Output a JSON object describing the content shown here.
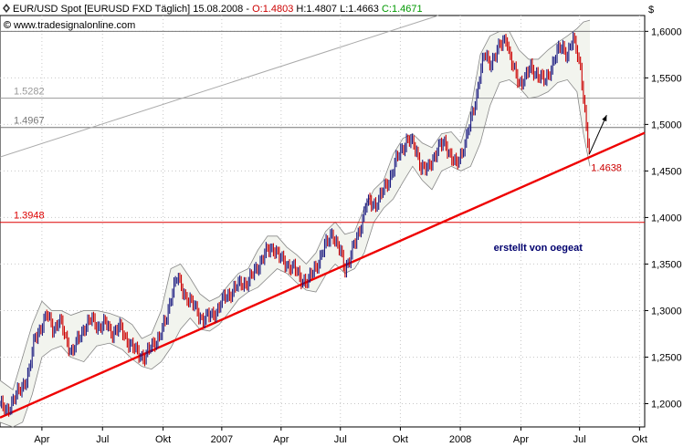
{
  "header": {
    "icon": "diamond-marker-icon",
    "title": "EUR/USD Spot [EURUSD FXD  Täglich] 15.08.2008 - ",
    "open": "O:1.4803",
    "high": " H:1.4807",
    "low": " L:1.4663",
    "close": " C:1.4671",
    "watermark": "www.tradesignalonline.com",
    "watermark_icon": "copyright-icon",
    "currency": "$"
  },
  "colors": {
    "candle": "#1a1a80",
    "candle_down": "#cc0000",
    "trend": "#ee0000",
    "level_gray": "#999999",
    "level_red": "#dd0000",
    "band": "#f2f4ee",
    "band_line": "#888888",
    "grid": "#c8c8c8"
  },
  "chart_data": {
    "type": "line",
    "ylim": [
      1.175,
      1.617
    ],
    "xlim": [
      0,
      100
    ],
    "y_ticks": [
      "1,6000",
      "1,5500",
      "1,5000",
      "1,4500",
      "1,4000",
      "1,3500",
      "1,3000",
      "1,2500",
      "1,2000"
    ],
    "y_tick_values": [
      1.6,
      1.55,
      1.5,
      1.45,
      1.4,
      1.35,
      1.3,
      1.25,
      1.2
    ],
    "x_ticks": [
      "Apr",
      "Jul",
      "Okt",
      "2007",
      "Apr",
      "Jul",
      "Okt",
      "2008",
      "Apr",
      "Jul",
      "Okt"
    ],
    "x_tick_values": [
      6.5,
      15.9,
      25.3,
      34.4,
      43.6,
      52.8,
      62.1,
      71.4,
      80.8,
      89.9,
      99.2
    ],
    "price": [
      [
        0.0,
        1.2
      ],
      [
        1.0,
        1.19
      ],
      [
        2.0,
        1.205
      ],
      [
        3.3,
        1.215
      ],
      [
        4.5,
        1.235
      ],
      [
        5.4,
        1.27
      ],
      [
        6.5,
        1.285
      ],
      [
        7.3,
        1.295
      ],
      [
        8.3,
        1.28
      ],
      [
        9.2,
        1.29
      ],
      [
        10.2,
        1.27
      ],
      [
        11.2,
        1.255
      ],
      [
        12.1,
        1.268
      ],
      [
        13.1,
        1.283
      ],
      [
        14.2,
        1.29
      ],
      [
        15.2,
        1.283
      ],
      [
        16.4,
        1.286
      ],
      [
        17.3,
        1.276
      ],
      [
        18.5,
        1.282
      ],
      [
        19.4,
        1.272
      ],
      [
        20.1,
        1.265
      ],
      [
        21.2,
        1.255
      ],
      [
        22.4,
        1.25
      ],
      [
        23.6,
        1.262
      ],
      [
        24.9,
        1.275
      ],
      [
        25.8,
        1.29
      ],
      [
        26.8,
        1.325
      ],
      [
        27.5,
        1.335
      ],
      [
        28.4,
        1.32
      ],
      [
        29.5,
        1.31
      ],
      [
        30.5,
        1.3
      ],
      [
        31.5,
        1.29
      ],
      [
        32.7,
        1.295
      ],
      [
        33.7,
        1.3
      ],
      [
        34.9,
        1.315
      ],
      [
        36.0,
        1.32
      ],
      [
        37.4,
        1.33
      ],
      [
        38.5,
        1.33
      ],
      [
        39.7,
        1.345
      ],
      [
        40.6,
        1.355
      ],
      [
        41.6,
        1.365
      ],
      [
        42.5,
        1.368
      ],
      [
        43.5,
        1.355
      ],
      [
        44.5,
        1.35
      ],
      [
        45.6,
        1.345
      ],
      [
        46.6,
        1.335
      ],
      [
        47.8,
        1.33
      ],
      [
        48.7,
        1.345
      ],
      [
        49.6,
        1.355
      ],
      [
        50.5,
        1.37
      ],
      [
        51.5,
        1.385
      ],
      [
        52.2,
        1.37
      ],
      [
        53.0,
        1.36
      ],
      [
        53.4,
        1.345
      ],
      [
        54.2,
        1.355
      ],
      [
        55.2,
        1.375
      ],
      [
        56.1,
        1.395
      ],
      [
        56.8,
        1.415
      ],
      [
        58.3,
        1.415
      ],
      [
        59.2,
        1.425
      ],
      [
        60.3,
        1.44
      ],
      [
        61.4,
        1.46
      ],
      [
        62.1,
        1.47
      ],
      [
        63.2,
        1.485
      ],
      [
        63.8,
        1.48
      ],
      [
        64.7,
        1.47
      ],
      [
        65.3,
        1.455
      ],
      [
        66.3,
        1.45
      ],
      [
        67.0,
        1.462
      ],
      [
        68.0,
        1.475
      ],
      [
        69.1,
        1.48
      ],
      [
        70.0,
        1.465
      ],
      [
        70.8,
        1.455
      ],
      [
        71.6,
        1.47
      ],
      [
        72.3,
        1.485
      ],
      [
        73.1,
        1.505
      ],
      [
        73.9,
        1.53
      ],
      [
        74.4,
        1.555
      ],
      [
        75.2,
        1.575
      ],
      [
        75.9,
        1.565
      ],
      [
        76.8,
        1.575
      ],
      [
        77.7,
        1.585
      ],
      [
        78.6,
        1.595
      ],
      [
        79.0,
        1.575
      ],
      [
        79.6,
        1.56
      ],
      [
        80.5,
        1.545
      ],
      [
        81.4,
        1.55
      ],
      [
        82.3,
        1.56
      ],
      [
        83.3,
        1.555
      ],
      [
        84.5,
        1.545
      ],
      [
        85.4,
        1.56
      ],
      [
        86.3,
        1.575
      ],
      [
        87.2,
        1.585
      ],
      [
        88.0,
        1.575
      ],
      [
        88.9,
        1.59
      ],
      [
        89.5,
        1.58
      ],
      [
        90.1,
        1.56
      ],
      [
        90.6,
        1.52
      ],
      [
        91.0,
        1.49
      ],
      [
        91.4,
        1.47
      ]
    ],
    "band_upper": [
      [
        0.0,
        1.225
      ],
      [
        2.0,
        1.215
      ],
      [
        3.5,
        1.25
      ],
      [
        5.0,
        1.285
      ],
      [
        6.5,
        1.31
      ],
      [
        8.0,
        1.3
      ],
      [
        9.5,
        1.3
      ],
      [
        11.0,
        1.295
      ],
      [
        13.0,
        1.3
      ],
      [
        15.0,
        1.3
      ],
      [
        17.0,
        1.297
      ],
      [
        19.0,
        1.292
      ],
      [
        20.5,
        1.285
      ],
      [
        22.0,
        1.27
      ],
      [
        23.5,
        1.275
      ],
      [
        25.0,
        1.3
      ],
      [
        26.5,
        1.345
      ],
      [
        28.0,
        1.35
      ],
      [
        29.5,
        1.335
      ],
      [
        31.0,
        1.318
      ],
      [
        32.5,
        1.31
      ],
      [
        34.0,
        1.315
      ],
      [
        35.5,
        1.328
      ],
      [
        37.0,
        1.34
      ],
      [
        38.5,
        1.345
      ],
      [
        40.0,
        1.365
      ],
      [
        41.5,
        1.38
      ],
      [
        43.0,
        1.38
      ],
      [
        44.5,
        1.368
      ],
      [
        46.0,
        1.36
      ],
      [
        47.5,
        1.35
      ],
      [
        49.0,
        1.362
      ],
      [
        50.5,
        1.385
      ],
      [
        52.0,
        1.395
      ],
      [
        53.5,
        1.382
      ],
      [
        55.0,
        1.385
      ],
      [
        56.5,
        1.41
      ],
      [
        58.0,
        1.43
      ],
      [
        59.5,
        1.44
      ],
      [
        61.0,
        1.468
      ],
      [
        62.5,
        1.485
      ],
      [
        64.0,
        1.49
      ],
      [
        65.5,
        1.48
      ],
      [
        67.0,
        1.475
      ],
      [
        68.5,
        1.49
      ],
      [
        70.0,
        1.492
      ],
      [
        71.5,
        1.48
      ],
      [
        73.0,
        1.515
      ],
      [
        74.5,
        1.575
      ],
      [
        76.0,
        1.595
      ],
      [
        77.5,
        1.6
      ],
      [
        79.0,
        1.6
      ],
      [
        80.5,
        1.58
      ],
      [
        82.0,
        1.57
      ],
      [
        83.5,
        1.57
      ],
      [
        85.0,
        1.58
      ],
      [
        86.5,
        1.588
      ],
      [
        88.0,
        1.595
      ],
      [
        89.5,
        1.603
      ],
      [
        90.5,
        1.61
      ],
      [
        91.5,
        1.612
      ]
    ],
    "band_lower": [
      [
        0.0,
        1.18
      ],
      [
        2.0,
        1.175
      ],
      [
        3.5,
        1.18
      ],
      [
        5.0,
        1.21
      ],
      [
        6.5,
        1.25
      ],
      [
        8.0,
        1.258
      ],
      [
        9.5,
        1.262
      ],
      [
        11.0,
        1.25
      ],
      [
        13.0,
        1.245
      ],
      [
        15.0,
        1.262
      ],
      [
        17.0,
        1.265
      ],
      [
        19.0,
        1.258
      ],
      [
        20.5,
        1.248
      ],
      [
        22.0,
        1.24
      ],
      [
        23.5,
        1.237
      ],
      [
        25.0,
        1.245
      ],
      [
        26.5,
        1.26
      ],
      [
        28.0,
        1.28
      ],
      [
        29.5,
        1.292
      ],
      [
        31.0,
        1.28
      ],
      [
        32.5,
        1.278
      ],
      [
        34.0,
        1.285
      ],
      [
        35.5,
        1.298
      ],
      [
        37.0,
        1.312
      ],
      [
        38.5,
        1.32
      ],
      [
        40.0,
        1.325
      ],
      [
        41.5,
        1.335
      ],
      [
        43.0,
        1.345
      ],
      [
        44.5,
        1.34
      ],
      [
        46.0,
        1.33
      ],
      [
        47.5,
        1.322
      ],
      [
        49.0,
        1.32
      ],
      [
        50.5,
        1.338
      ],
      [
        52.0,
        1.35
      ],
      [
        53.5,
        1.34
      ],
      [
        55.0,
        1.345
      ],
      [
        56.5,
        1.362
      ],
      [
        58.0,
        1.395
      ],
      [
        59.5,
        1.41
      ],
      [
        61.0,
        1.42
      ],
      [
        62.5,
        1.438
      ],
      [
        64.0,
        1.455
      ],
      [
        65.5,
        1.44
      ],
      [
        67.0,
        1.43
      ],
      [
        68.5,
        1.45
      ],
      [
        70.0,
        1.455
      ],
      [
        71.5,
        1.45
      ],
      [
        73.0,
        1.455
      ],
      [
        74.5,
        1.48
      ],
      [
        76.0,
        1.52
      ],
      [
        77.5,
        1.545
      ],
      [
        79.0,
        1.548
      ],
      [
        80.5,
        1.54
      ],
      [
        82.0,
        1.528
      ],
      [
        83.5,
        1.53
      ],
      [
        85.0,
        1.535
      ],
      [
        86.5,
        1.545
      ],
      [
        88.0,
        1.548
      ],
      [
        89.5,
        1.535
      ],
      [
        90.5,
        1.49
      ],
      [
        91.5,
        1.455
      ]
    ],
    "lower_trendline": [
      [
        0.0,
        1.185
      ],
      [
        100.0,
        1.491
      ]
    ],
    "upper_trendline": [
      [
        0.0,
        1.465
      ],
      [
        68.0,
        1.617
      ]
    ],
    "levels": [
      {
        "value": 1.6,
        "label": "",
        "color": "#777777"
      },
      {
        "value": 1.5282,
        "label": "1.5282",
        "color": "#999999"
      },
      {
        "value": 1.4967,
        "label": "1.4967",
        "color": "#777777"
      },
      {
        "value": 1.3948,
        "label": "1.3948",
        "color": "#dd0000"
      }
    ],
    "annotations": [
      {
        "text": "1.4638",
        "x": 91.4,
        "y": 1.4638
      },
      {
        "text": "erstellt von oegeat",
        "x": 78.0,
        "y": 1.364
      }
    ],
    "arrow": {
      "from": [
        91.4,
        1.468
      ],
      "to": [
        94.1,
        1.51
      ]
    }
  }
}
